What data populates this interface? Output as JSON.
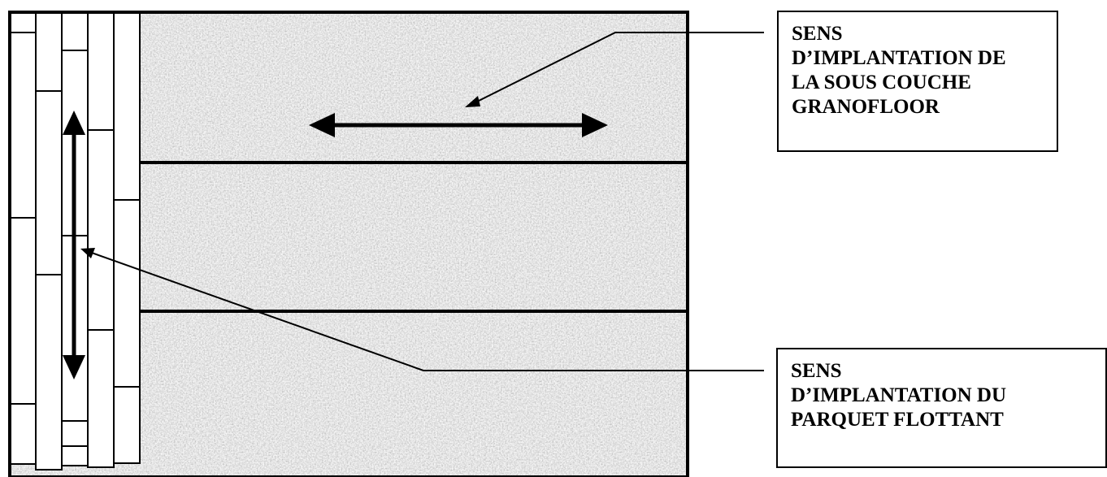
{
  "colors": {
    "granite_base": "#a9a9a9",
    "outline": "#000000",
    "plank_fill": "#ffffff"
  },
  "icons": {
    "underlay_direction": "double-headed-horizontal-arrow",
    "parquet_direction": "double-headed-vertical-arrow"
  },
  "labels": {
    "underlay": {
      "lines": [
        "SENS",
        "D’IMPLANTATION DE",
        "LA SOUS COUCHE",
        "GRANOFLOOR"
      ]
    },
    "parquet": {
      "lines": [
        "SENS",
        "D’IMPLANTATION DU",
        "PARQUET FLOTTANT"
      ]
    }
  }
}
